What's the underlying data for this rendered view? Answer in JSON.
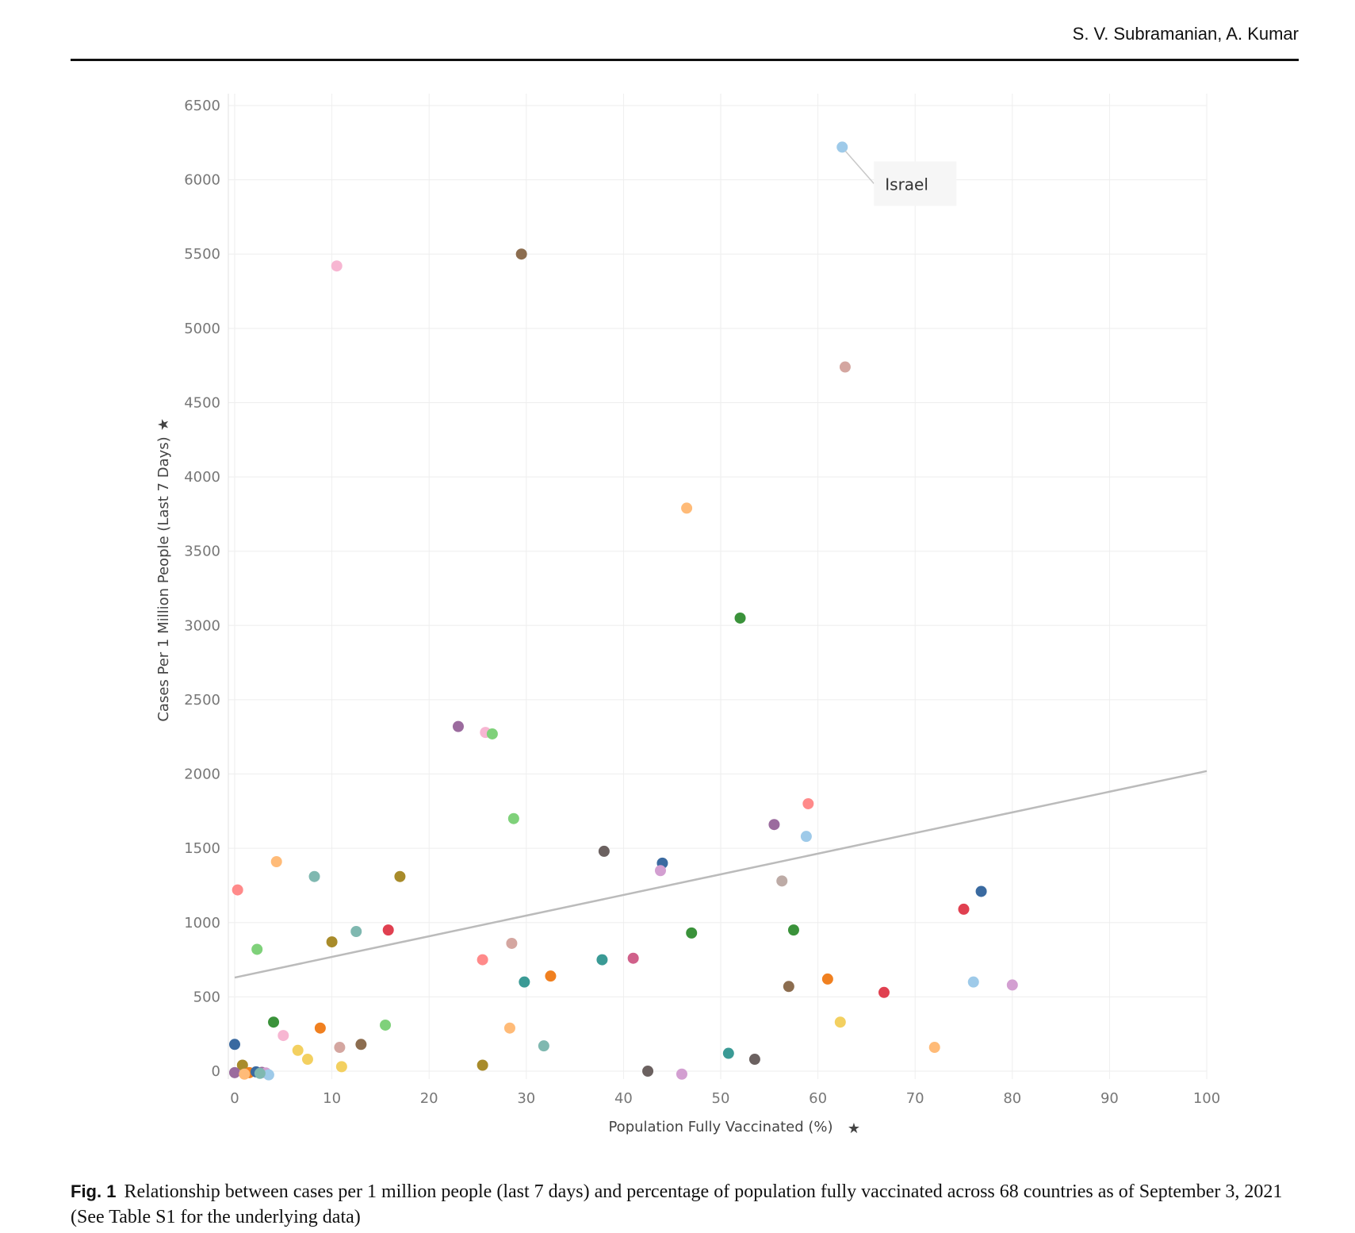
{
  "header": {
    "author": "S. V. Subramanian, A. Kumar"
  },
  "caption": {
    "label": "Fig. 1",
    "text": "Relationship between cases per 1 million people (last 7 days) and percentage of population fully vaccinated across 68 countries as of September 3, 2021 (See Table S1 for the underlying data)"
  },
  "chart_data": {
    "type": "scatter",
    "xlabel": "Population Fully Vaccinated (%)",
    "ylabel": "Cases Per 1 Million People (Last 7 Days)",
    "xlim": [
      0,
      100
    ],
    "ylim": [
      -50,
      6550
    ],
    "x_ticks": [
      0,
      10,
      20,
      30,
      40,
      50,
      60,
      70,
      80,
      90,
      100
    ],
    "y_ticks": [
      0,
      500,
      1000,
      1500,
      2000,
      2500,
      3000,
      3500,
      4000,
      4500,
      5000,
      5500,
      6000,
      6500
    ],
    "grid": true,
    "trend_line": {
      "color": "#bbbbbb",
      "points": [
        [
          0,
          630
        ],
        [
          100,
          2020
        ]
      ]
    },
    "annotation": {
      "text": "Israel",
      "x": 62.5,
      "y": 6220
    },
    "points": [
      {
        "x": 62.5,
        "y": 6220,
        "color": "#9ecae9"
      },
      {
        "x": 29.5,
        "y": 5500,
        "color": "#8c6d4f"
      },
      {
        "x": 10.5,
        "y": 5420,
        "color": "#f7b6d2"
      },
      {
        "x": 62.8,
        "y": 4740,
        "color": "#d4a6a0"
      },
      {
        "x": 46.5,
        "y": 3790,
        "color": "#ffbb78"
      },
      {
        "x": 52.0,
        "y": 3050,
        "color": "#3a923a"
      },
      {
        "x": 23.0,
        "y": 2320,
        "color": "#9b6b9e"
      },
      {
        "x": 25.8,
        "y": 2280,
        "color": "#f7b6d2"
      },
      {
        "x": 26.5,
        "y": 2270,
        "color": "#7fd17a"
      },
      {
        "x": 59.0,
        "y": 1800,
        "color": "#ff8a8a"
      },
      {
        "x": 28.7,
        "y": 1700,
        "color": "#7fd17a"
      },
      {
        "x": 55.5,
        "y": 1660,
        "color": "#9b6b9e"
      },
      {
        "x": 58.8,
        "y": 1580,
        "color": "#9ecae9"
      },
      {
        "x": 38.0,
        "y": 1480,
        "color": "#6b6160"
      },
      {
        "x": 4.3,
        "y": 1410,
        "color": "#ffbb78"
      },
      {
        "x": 44.0,
        "y": 1400,
        "color": "#3a6aa0"
      },
      {
        "x": 43.8,
        "y": 1350,
        "color": "#d39fd1"
      },
      {
        "x": 8.2,
        "y": 1310,
        "color": "#7fb8b0"
      },
      {
        "x": 17.0,
        "y": 1310,
        "color": "#a88b2a"
      },
      {
        "x": 56.3,
        "y": 1280,
        "color": "#bdaba6"
      },
      {
        "x": 0.3,
        "y": 1220,
        "color": "#ff8a8a"
      },
      {
        "x": 76.8,
        "y": 1210,
        "color": "#3a6aa0"
      },
      {
        "x": 75.0,
        "y": 1090,
        "color": "#e04050"
      },
      {
        "x": 15.8,
        "y": 950,
        "color": "#e04050"
      },
      {
        "x": 57.5,
        "y": 950,
        "color": "#3a923a"
      },
      {
        "x": 12.5,
        "y": 940,
        "color": "#7fb8b0"
      },
      {
        "x": 47.0,
        "y": 930,
        "color": "#3a923a"
      },
      {
        "x": 10.0,
        "y": 870,
        "color": "#a88b2a"
      },
      {
        "x": 28.5,
        "y": 860,
        "color": "#d4a6a0"
      },
      {
        "x": 2.3,
        "y": 820,
        "color": "#7fd17a"
      },
      {
        "x": 41.0,
        "y": 760,
        "color": "#d0608a"
      },
      {
        "x": 25.5,
        "y": 750,
        "color": "#ff8a8a"
      },
      {
        "x": 37.8,
        "y": 750,
        "color": "#3a9a95"
      },
      {
        "x": 32.5,
        "y": 640,
        "color": "#f08020"
      },
      {
        "x": 29.8,
        "y": 600,
        "color": "#3a9a95"
      },
      {
        "x": 61.0,
        "y": 620,
        "color": "#f08020"
      },
      {
        "x": 76.0,
        "y": 600,
        "color": "#9ecae9"
      },
      {
        "x": 80.0,
        "y": 580,
        "color": "#d39fd1"
      },
      {
        "x": 57.0,
        "y": 570,
        "color": "#8c6d4f"
      },
      {
        "x": 66.8,
        "y": 530,
        "color": "#e04050"
      },
      {
        "x": 4.0,
        "y": 330,
        "color": "#3a923a"
      },
      {
        "x": 62.3,
        "y": 330,
        "color": "#f3d060"
      },
      {
        "x": 15.5,
        "y": 310,
        "color": "#7fd17a"
      },
      {
        "x": 8.8,
        "y": 290,
        "color": "#f08020"
      },
      {
        "x": 28.3,
        "y": 290,
        "color": "#ffbb78"
      },
      {
        "x": 5.0,
        "y": 240,
        "color": "#f7b6d2"
      },
      {
        "x": 0.0,
        "y": 180,
        "color": "#3a6aa0"
      },
      {
        "x": 13.0,
        "y": 180,
        "color": "#8c6d4f"
      },
      {
        "x": 31.8,
        "y": 170,
        "color": "#7fb8b0"
      },
      {
        "x": 10.8,
        "y": 160,
        "color": "#d4a6a0"
      },
      {
        "x": 72.0,
        "y": 160,
        "color": "#ffbb78"
      },
      {
        "x": 6.5,
        "y": 140,
        "color": "#f3d060"
      },
      {
        "x": 50.8,
        "y": 120,
        "color": "#3a9a95"
      },
      {
        "x": 7.5,
        "y": 80,
        "color": "#f3d060"
      },
      {
        "x": 53.5,
        "y": 80,
        "color": "#6b6160"
      },
      {
        "x": 25.5,
        "y": 40,
        "color": "#a88b2a"
      },
      {
        "x": 11.0,
        "y": 30,
        "color": "#f3d060"
      },
      {
        "x": 0.8,
        "y": 40,
        "color": "#a88b2a"
      },
      {
        "x": 42.5,
        "y": 0,
        "color": "#6b6160"
      },
      {
        "x": 46.0,
        "y": -20,
        "color": "#d39fd1"
      },
      {
        "x": 0.0,
        "y": -10,
        "color": "#9b6b9e"
      },
      {
        "x": 1.5,
        "y": -10,
        "color": "#f08020"
      },
      {
        "x": 2.2,
        "y": -5,
        "color": "#3a6aa0"
      },
      {
        "x": 2.8,
        "y": -8,
        "color": "#9b6b9e"
      },
      {
        "x": 3.2,
        "y": -12,
        "color": "#d39fd1"
      },
      {
        "x": 3.5,
        "y": -25,
        "color": "#9ecae9"
      },
      {
        "x": 1.0,
        "y": -20,
        "color": "#ffbb78"
      },
      {
        "x": 2.6,
        "y": -15,
        "color": "#7fb8b0"
      }
    ]
  }
}
